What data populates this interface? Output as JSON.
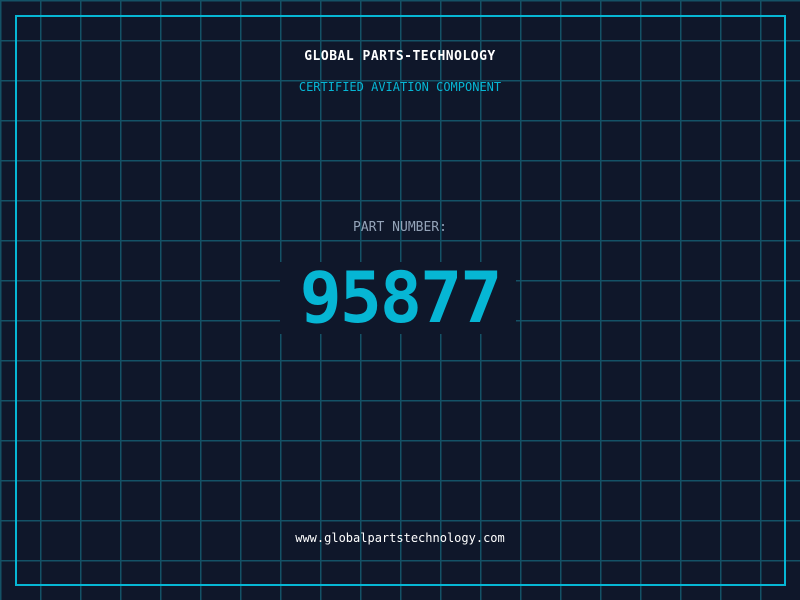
{
  "header": {
    "brand": "GLOBAL PARTS-TECHNOLOGY",
    "subtitle": "CERTIFIED AVIATION COMPONENT"
  },
  "part": {
    "label": "PART NUMBER:",
    "number": "95877"
  },
  "footer": {
    "url": "www.globalpartstechnology.com"
  },
  "colors": {
    "background": "#0f172a",
    "accent": "#06b6d4",
    "grid": "#145266"
  }
}
